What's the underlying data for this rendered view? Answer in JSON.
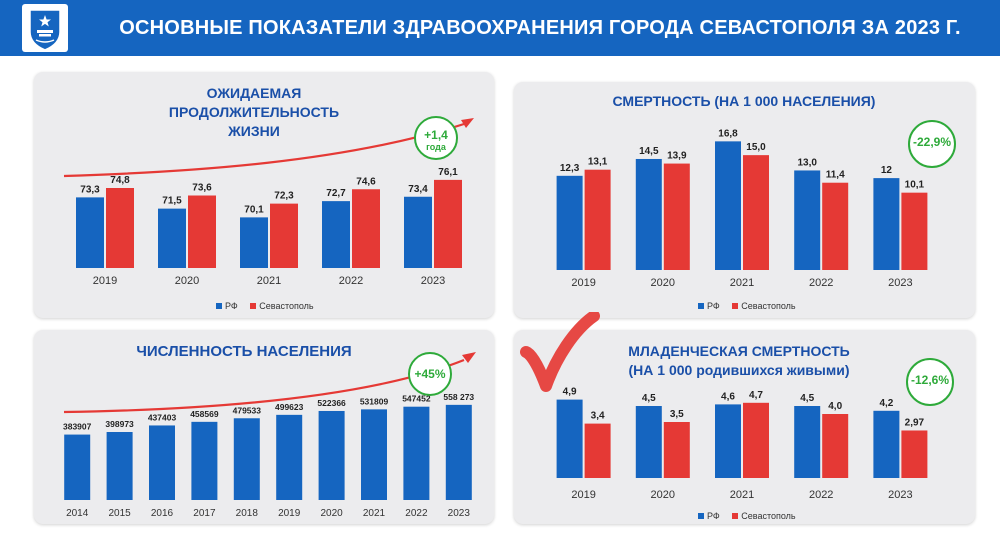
{
  "header": {
    "title": "ОСНОВНЫЕ ПОКАЗАТЕЛИ ЗДРАВООХРАНЕНИЯ ГОРОДА СЕВАСТОПОЛЯ ЗА 2023 Г."
  },
  "colors": {
    "rf": "#1565c0",
    "sev": "#e53935",
    "badge": "#2eaa3a",
    "title": "#1a4fa8",
    "header": "#1565c0",
    "checkmark": "#e53935"
  },
  "legend": {
    "rf": "РФ",
    "sev": "Севастополь"
  },
  "icons": {
    "logo": "sevastopol-coat-of-arms-icon",
    "trend": "trend-arrow-icon",
    "check": "check-mark-icon"
  },
  "panels": {
    "life": {
      "title_lines": [
        "ОЖИДАЕМАЯ",
        "ПРОДОЛЖИТЕЛЬНОСТЬ",
        "ЖИЗНИ"
      ],
      "badge_main": "+1,4",
      "badge_sub": "года"
    },
    "mortality": {
      "title": "СМЕРТНОСТЬ (НА 1 000 НАСЕЛЕНИЯ)",
      "badge_main": "-22,9%"
    },
    "population": {
      "title": "ЧИСЛЕННОСТЬ НАСЕЛЕНИЯ",
      "badge_main": "+45%"
    },
    "infant": {
      "title_lines": [
        "МЛАДЕНЧЕСКАЯ СМЕРТНОСТЬ",
        "(НА 1 000 родившихся живыми)"
      ],
      "badge_main": "-12,6%"
    }
  },
  "chart_data": [
    {
      "type": "bar",
      "title": "ОЖИДАЕМАЯ ПРОДОЛЖИТЕЛЬНОСТЬ ЖИЗНИ",
      "categories": [
        "2019",
        "2020",
        "2021",
        "2022",
        "2023"
      ],
      "ylim": [
        62,
        78
      ],
      "series": [
        {
          "name": "РФ",
          "values": [
            73.3,
            71.5,
            70.1,
            72.7,
            73.4
          ],
          "labels": [
            "73,3",
            "71,5",
            "70,1",
            "72,7",
            "73,4"
          ]
        },
        {
          "name": "Севастополь",
          "values": [
            74.8,
            73.6,
            72.3,
            74.6,
            76.1
          ],
          "labels": [
            "74,8",
            "73,6",
            "72,3",
            "74,6",
            "76,1"
          ]
        }
      ],
      "legend_position": "bottom",
      "grid": false
    },
    {
      "type": "bar",
      "title": "СМЕРТНОСТЬ (НА 1 000 НАСЕЛЕНИЯ)",
      "categories": [
        "2019",
        "2020",
        "2021",
        "2022",
        "2023"
      ],
      "ylim": [
        0,
        17.5
      ],
      "series": [
        {
          "name": "РФ",
          "values": [
            12.3,
            14.5,
            16.8,
            13.0,
            12
          ],
          "labels": [
            "12,3",
            "14,5",
            "16,8",
            "13,0",
            "12"
          ]
        },
        {
          "name": "Севастополь",
          "values": [
            13.1,
            13.9,
            15.0,
            11.4,
            10.1
          ],
          "labels": [
            "13,1",
            "13,9",
            "15,0",
            "11,4",
            "10,1"
          ]
        }
      ],
      "legend_position": "bottom",
      "grid": false
    },
    {
      "type": "bar",
      "title": "ЧИСЛЕННОСТЬ НАСЕЛЕНИЯ",
      "categories": [
        "2014",
        "2015",
        "2016",
        "2017",
        "2018",
        "2019",
        "2020",
        "2021",
        "2022",
        "2023"
      ],
      "ylim": [
        0,
        575000
      ],
      "series": [
        {
          "values": [
            383907,
            398973,
            437403,
            458569,
            479533,
            499623,
            522366,
            531809,
            547452,
            558273
          ],
          "labels": [
            "383907",
            "398973",
            "437403",
            "458569",
            "479533",
            "499623",
            "522366",
            "531809",
            "547452",
            "558 273"
          ]
        }
      ],
      "grid": false
    },
    {
      "type": "bar",
      "title": "МЛАДЕНЧЕСКАЯ СМЕРТНОСТЬ (НА 1 000 родившихся живыми)",
      "categories": [
        "2019",
        "2020",
        "2021",
        "2022",
        "2023"
      ],
      "ylim": [
        0,
        5.0
      ],
      "series": [
        {
          "name": "РФ",
          "values": [
            4.9,
            4.5,
            4.6,
            4.5,
            4.2
          ],
          "labels": [
            "4,9",
            "4,5",
            "4,6",
            "4,5",
            "4,2"
          ]
        },
        {
          "name": "Севастополь",
          "values": [
            3.4,
            3.5,
            4.7,
            4.0,
            2.97
          ],
          "labels": [
            "3,4",
            "3,5",
            "4,7",
            "4,0",
            "2,97"
          ]
        }
      ],
      "legend_position": "bottom",
      "grid": false
    }
  ]
}
